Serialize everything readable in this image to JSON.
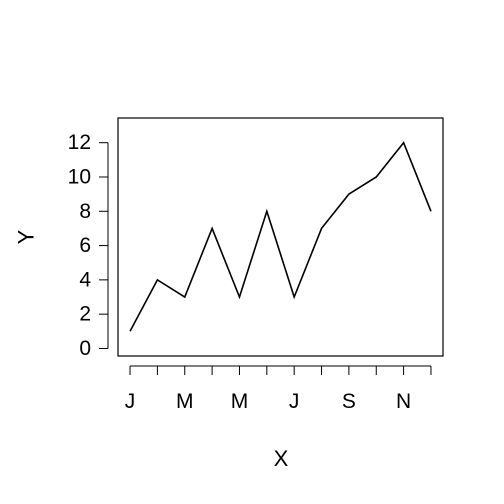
{
  "chart_data": {
    "type": "line",
    "title": "",
    "xlabel": "X",
    "ylabel": "Y",
    "x": [
      1,
      2,
      3,
      4,
      5,
      6,
      7,
      8,
      9,
      10,
      11,
      12
    ],
    "series": [
      {
        "values": [
          1,
          4,
          3,
          7,
          3,
          8,
          3,
          7,
          9,
          10,
          12,
          8
        ]
      }
    ],
    "x_ticks": [
      1,
      2,
      3,
      4,
      5,
      6,
      7,
      8,
      9,
      10,
      11,
      12
    ],
    "x_tick_labels": [
      {
        "x": 1,
        "label": "J"
      },
      {
        "x": 3,
        "label": "M"
      },
      {
        "x": 5,
        "label": "M"
      },
      {
        "x": 7,
        "label": "J"
      },
      {
        "x": 9,
        "label": "S"
      },
      {
        "x": 11,
        "label": "N"
      }
    ],
    "y_ticks": [
      0,
      2,
      4,
      6,
      8,
      10,
      12
    ],
    "xlim": [
      0.56,
      12.44
    ],
    "ylim": [
      -0.44,
      13.44
    ],
    "grid": false,
    "legend": "none",
    "colors": {
      "line": "#000000",
      "axis": "#000000",
      "background": "#ffffff"
    }
  }
}
